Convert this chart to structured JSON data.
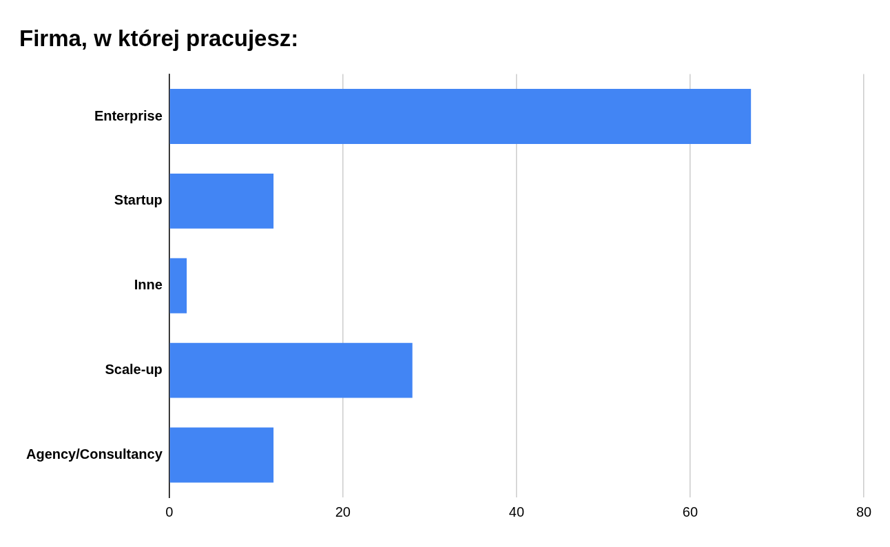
{
  "chart_data": {
    "type": "bar",
    "orientation": "horizontal",
    "title": "Firma, w której pracujesz:",
    "categories": [
      "Enterprise",
      "Startup",
      "Inne",
      "Scale-up",
      "Agency/Consultancy"
    ],
    "values": [
      67,
      12,
      2,
      28,
      12
    ],
    "color": "#4285f4",
    "xlim": [
      0,
      80
    ],
    "xticks": [
      0,
      20,
      40,
      60,
      80
    ],
    "grid": "x",
    "legend": false
  }
}
